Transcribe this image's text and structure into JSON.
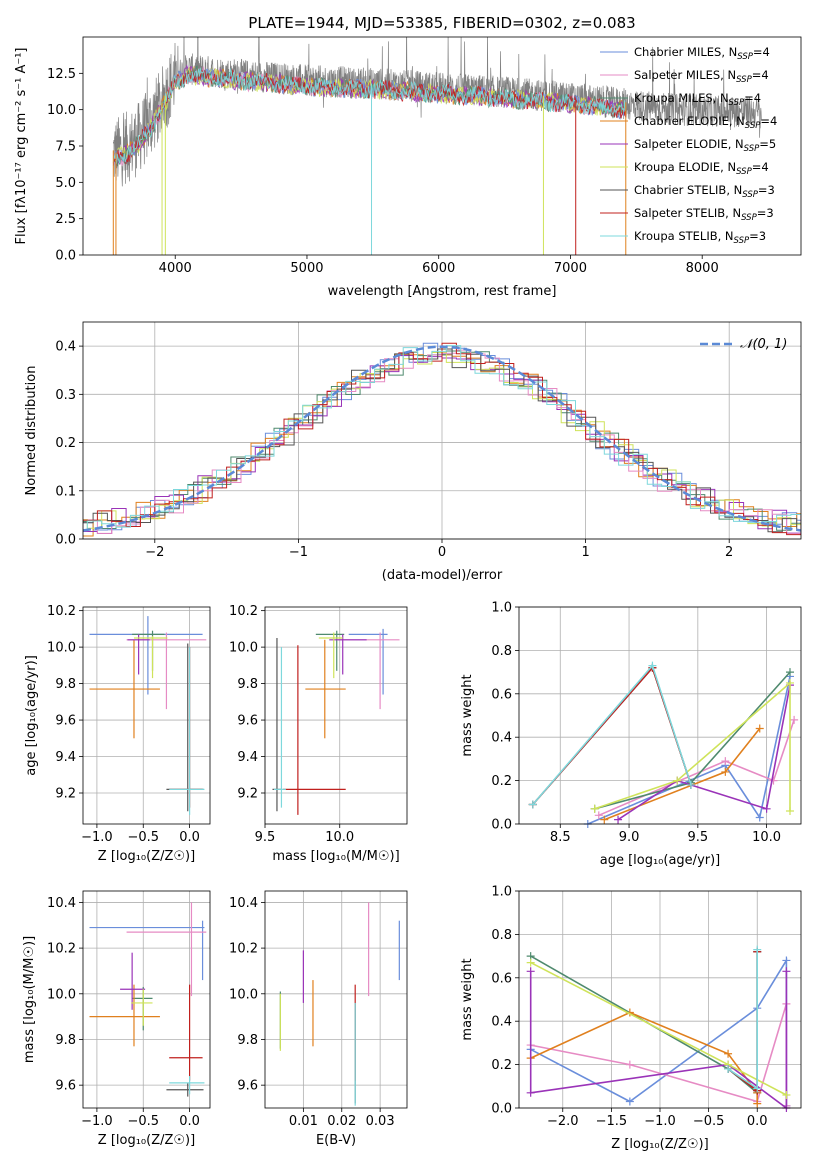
{
  "colors": [
    "#6a8edb",
    "#e68bc4",
    "#4f8a6e",
    "#e0801e",
    "#9a33b8",
    "#cfe35a",
    "#555555",
    "#c0201e",
    "#7ed8dc"
  ],
  "chart_data": [
    {
      "id": "spectrum",
      "type": "line",
      "title": "PLATE=1944, MJD=53385, FIBERID=0302, z=0.083",
      "xlabel": "wavelength [Angstrom, rest frame]",
      "ylabel": "Flux [fλ10⁻¹⁷ erg cm⁻² s⁻¹ A⁻¹]",
      "xlim": [
        3300,
        8750
      ],
      "ylim": [
        0,
        15
      ],
      "xticks": [
        4000,
        5000,
        6000,
        7000,
        8000
      ],
      "yticks": [
        0.0,
        2.5,
        5.0,
        7.5,
        10.0,
        12.5
      ],
      "xticklabels": [
        "4000",
        "5000",
        "6000",
        "7000",
        "8000"
      ],
      "yticklabels": [
        "0.0",
        "2.5",
        "5.0",
        "7.5",
        "10.0",
        "12.5"
      ],
      "grid": false,
      "legend_position": "upper-right",
      "legend": [
        {
          "text": "Chabrier MILES, N",
          "sub": "SSP",
          "val": "=4",
          "color": "#6a8edb"
        },
        {
          "text": "Salpeter MILES, N",
          "sub": "SSP",
          "val": "=4",
          "color": "#e68bc4"
        },
        {
          "text": "Kroupa MILES, N",
          "sub": "SSP",
          "val": "=4",
          "color": "#4f8a6e"
        },
        {
          "text": "Chabrier ELODIE, N",
          "sub": "SSP",
          "val": "=4",
          "color": "#e0801e"
        },
        {
          "text": "Salpeter ELODIE, N",
          "sub": "SSP",
          "val": "=5",
          "color": "#9a33b8"
        },
        {
          "text": "Kroupa ELODIE, N",
          "sub": "SSP",
          "val": "=4",
          "color": "#cfe35a"
        },
        {
          "text": "Chabrier STELIB, N",
          "sub": "SSP",
          "val": "=3",
          "color": "#555555"
        },
        {
          "text": "Salpeter STELIB, N",
          "sub": "SSP",
          "val": "=3",
          "color": "#c0201e"
        },
        {
          "text": "Kroupa STELIB, N",
          "sub": "SSP",
          "val": "=3",
          "color": "#7ed8dc"
        }
      ],
      "data_range": [
        3530,
        8450
      ],
      "data_envelope": {
        "x": [
          3530,
          3600,
          3700,
          3800,
          3900,
          4000,
          4100,
          4300,
          4500,
          5000,
          5500,
          6000,
          6500,
          7000,
          7400,
          7800,
          8200,
          8450
        ],
        "y": [
          7.0,
          7.2,
          7.8,
          9.0,
          10.5,
          12.3,
          12.8,
          12.6,
          12.4,
          12.0,
          11.8,
          11.5,
          11.2,
          10.8,
          10.4,
          10.0,
          9.9,
          9.8
        ]
      },
      "model_range": [
        3530,
        7420
      ]
    },
    {
      "id": "residuals",
      "type": "line",
      "xlabel": "(data-model)/error",
      "ylabel": "Normed distribution",
      "xlim": [
        -2.5,
        2.5
      ],
      "ylim": [
        0,
        0.45
      ],
      "xticks": [
        -2,
        -1,
        0,
        1,
        2
      ],
      "yticks": [
        0.0,
        0.1,
        0.2,
        0.3,
        0.4
      ],
      "xticklabels": [
        "−2",
        "−1",
        "0",
        "1",
        "2"
      ],
      "yticklabels": [
        "0.0",
        "0.1",
        "0.2",
        "0.3",
        "0.4"
      ],
      "grid": true,
      "legend_position": "upper-right",
      "legend_label": "𝒩(0, 1)",
      "gaussian": {
        "mean": 0,
        "sigma": 1,
        "color": "#5b8ad6"
      },
      "bin_width": 0.1
    },
    {
      "id": "age-vs-Z",
      "type": "scatter",
      "xlabel": "Z [log₁₀(Z/Z☉)]",
      "ylabel": "age  [log₁₀(age/yr)]",
      "xlim": [
        -1.15,
        0.22
      ],
      "ylim": [
        9.03,
        10.22
      ],
      "xticks": [
        -1.0,
        -0.5,
        0.0
      ],
      "yticks": [
        9.2,
        9.4,
        9.6,
        9.8,
        10.0,
        10.2
      ],
      "xticklabels": [
        "−1.0",
        "−0.5",
        "0.0"
      ],
      "yticklabels": [
        "9.2",
        "9.4",
        "9.6",
        "9.8",
        "10.0",
        "10.2"
      ],
      "grid": true,
      "points": [
        {
          "x": -0.45,
          "xlo": -1.08,
          "xhi": 0.14,
          "y": 10.07,
          "ylo": 9.74,
          "yhi": 10.17,
          "c": 0
        },
        {
          "x": -0.25,
          "xlo": -0.68,
          "xhi": 0.18,
          "y": 10.04,
          "ylo": 9.66,
          "yhi": 10.08,
          "c": 1
        },
        {
          "x": -0.4,
          "xlo": -0.62,
          "xhi": -0.27,
          "y": 10.07,
          "ylo": 9.87,
          "yhi": 10.09,
          "c": 2
        },
        {
          "x": -0.6,
          "xlo": -1.08,
          "xhi": -0.32,
          "y": 9.77,
          "ylo": 9.5,
          "yhi": 10.04,
          "c": 3
        },
        {
          "x": -0.55,
          "xlo": -0.67,
          "xhi": -0.43,
          "y": 10.04,
          "ylo": 9.85,
          "yhi": 10.07,
          "c": 4
        },
        {
          "x": -0.4,
          "xlo": -0.6,
          "xhi": -0.24,
          "y": 10.05,
          "ylo": 9.83,
          "yhi": 10.06,
          "c": 5
        },
        {
          "x": -0.02,
          "xlo": -0.25,
          "xhi": 0.15,
          "y": 9.22,
          "ylo": 9.1,
          "yhi": 10.02,
          "c": 6
        },
        {
          "x": 0.0,
          "xlo": -0.22,
          "xhi": 0.14,
          "y": 9.22,
          "ylo": 9.12,
          "yhi": 10.0,
          "c": 7
        },
        {
          "x": 0.0,
          "xlo": -0.22,
          "xhi": 0.16,
          "y": 9.22,
          "ylo": 9.08,
          "yhi": 10.0,
          "c": 8
        }
      ]
    },
    {
      "id": "age-vs-mass",
      "type": "scatter",
      "xlabel": "mass [log₁₀(M/M☉)]",
      "ylabel": "",
      "xlim": [
        9.5,
        10.45
      ],
      "ylim": [
        9.03,
        10.22
      ],
      "xticks": [
        9.5,
        10.0
      ],
      "yticks": [
        9.2,
        9.4,
        9.6,
        9.8,
        10.0,
        10.2
      ],
      "xticklabels": [
        "9.5",
        "10.0"
      ],
      "yticklabels": [
        "9.2",
        "9.4",
        "9.6",
        "9.8",
        "10.0",
        "10.2"
      ],
      "grid": true,
      "points": [
        {
          "x": 10.29,
          "xlo": 10.06,
          "xhi": 10.32,
          "y": 10.07,
          "ylo": 9.74,
          "yhi": 10.1,
          "c": 0
        },
        {
          "x": 10.27,
          "xlo": 9.99,
          "xhi": 10.4,
          "y": 10.04,
          "ylo": 9.66,
          "yhi": 10.08,
          "c": 1
        },
        {
          "x": 9.98,
          "xlo": 9.84,
          "xhi": 10.03,
          "y": 10.07,
          "ylo": 9.87,
          "yhi": 10.09,
          "c": 2
        },
        {
          "x": 9.9,
          "xlo": 9.77,
          "xhi": 10.04,
          "y": 9.77,
          "ylo": 9.5,
          "yhi": 10.04,
          "c": 3
        },
        {
          "x": 10.02,
          "xlo": 9.93,
          "xhi": 10.18,
          "y": 10.04,
          "ylo": 9.85,
          "yhi": 10.07,
          "c": 4
        },
        {
          "x": 9.96,
          "xlo": 9.86,
          "xhi": 10.02,
          "y": 10.05,
          "ylo": 9.83,
          "yhi": 10.08,
          "c": 5
        },
        {
          "x": 9.58,
          "xlo": 9.55,
          "xhi": 9.61,
          "y": 9.22,
          "ylo": 9.1,
          "yhi": 10.05,
          "c": 6
        },
        {
          "x": 9.72,
          "xlo": 9.62,
          "xhi": 10.04,
          "y": 9.22,
          "ylo": 9.08,
          "yhi": 10.01,
          "c": 7
        },
        {
          "x": 9.61,
          "xlo": 9.56,
          "xhi": 9.64,
          "y": 9.22,
          "ylo": 9.12,
          "yhi": 10.0,
          "c": 8
        }
      ]
    },
    {
      "id": "mass-weight-vs-age",
      "type": "line",
      "xlabel": "age  [log₁₀(age/yr)]",
      "ylabel": "mass weight",
      "xlim": [
        8.2,
        10.25
      ],
      "ylim": [
        0,
        1
      ],
      "xticks": [
        8.5,
        9.0,
        9.5,
        10.0
      ],
      "yticks": [
        0.0,
        0.2,
        0.4,
        0.6,
        0.8,
        1.0
      ],
      "xticklabels": [
        "8.5",
        "9.0",
        "9.5",
        "10.0"
      ],
      "yticklabels": [
        "0.0",
        "0.2",
        "0.4",
        "0.6",
        "0.8",
        "1.0"
      ],
      "grid": true,
      "series": [
        {
          "c": 0,
          "x": [
            8.7,
            9.7,
            9.95,
            10.17
          ],
          "y": [
            0.0,
            0.27,
            0.03,
            0.68
          ]
        },
        {
          "c": 1,
          "x": [
            8.78,
            9.7,
            10.05,
            10.2
          ],
          "y": [
            0.04,
            0.29,
            0.2,
            0.48
          ]
        },
        {
          "c": 2,
          "x": [
            8.75,
            9.45,
            10.17
          ],
          "y": [
            0.07,
            0.19,
            0.7
          ]
        },
        {
          "c": 3,
          "x": [
            8.82,
            9.7,
            9.95
          ],
          "y": [
            0.02,
            0.24,
            0.44
          ]
        },
        {
          "c": 4,
          "x": [
            8.92,
            9.35,
            10.0,
            10.17
          ],
          "y": [
            0.02,
            0.2,
            0.07,
            0.64
          ]
        },
        {
          "c": 5,
          "x": [
            8.75,
            9.35,
            10.17,
            10.17
          ],
          "y": [
            0.07,
            0.2,
            0.65,
            0.06
          ]
        },
        {
          "c": 6,
          "x": [
            8.3,
            9.17,
            9.45
          ],
          "y": [
            0.09,
            0.72,
            0.18
          ]
        },
        {
          "c": 7,
          "x": [
            8.3,
            9.17,
            9.45
          ],
          "y": [
            0.09,
            0.72,
            0.18
          ]
        },
        {
          "c": 8,
          "x": [
            8.3,
            9.17,
            9.45
          ],
          "y": [
            0.09,
            0.73,
            0.18
          ]
        }
      ]
    },
    {
      "id": "mass-vs-Z",
      "type": "scatter",
      "xlabel": "Z [log₁₀(Z/Z☉)]",
      "ylabel": "mass [log₁₀(M/M☉)]",
      "xlim": [
        -1.15,
        0.22
      ],
      "ylim": [
        9.5,
        10.45
      ],
      "xticks": [
        -1.0,
        -0.5,
        0.0
      ],
      "yticks": [
        9.6,
        9.8,
        10.0,
        10.2,
        10.4
      ],
      "xticklabels": [
        "−1.0",
        "−0.5",
        "0.0"
      ],
      "yticklabels": [
        "9.6",
        "9.8",
        "10.0",
        "10.2",
        "10.4"
      ],
      "grid": true,
      "points": [
        {
          "x": 0.14,
          "xlo": -1.08,
          "xhi": 0.16,
          "y": 10.29,
          "ylo": 10.06,
          "yhi": 10.32,
          "c": 0
        },
        {
          "x": 0.02,
          "xlo": -0.68,
          "xhi": 0.18,
          "y": 10.27,
          "ylo": 9.99,
          "yhi": 10.4,
          "c": 1
        },
        {
          "x": -0.5,
          "xlo": -0.62,
          "xhi": -0.4,
          "y": 9.98,
          "ylo": 9.84,
          "yhi": 10.03,
          "c": 2
        },
        {
          "x": -0.6,
          "xlo": -1.08,
          "xhi": -0.32,
          "y": 9.9,
          "ylo": 9.77,
          "yhi": 10.04,
          "c": 3
        },
        {
          "x": -0.62,
          "xlo": -0.75,
          "xhi": -0.48,
          "y": 10.02,
          "ylo": 9.93,
          "yhi": 10.18,
          "c": 4
        },
        {
          "x": -0.5,
          "xlo": -0.63,
          "xhi": -0.4,
          "y": 9.96,
          "ylo": 9.86,
          "yhi": 10.02,
          "c": 5
        },
        {
          "x": -0.02,
          "xlo": -0.25,
          "xhi": 0.15,
          "y": 9.58,
          "ylo": 9.55,
          "yhi": 9.61,
          "c": 6
        },
        {
          "x": 0.0,
          "xlo": -0.22,
          "xhi": 0.14,
          "y": 9.72,
          "ylo": 9.62,
          "yhi": 10.04,
          "c": 7
        },
        {
          "x": 0.0,
          "xlo": -0.22,
          "xhi": 0.16,
          "y": 9.61,
          "ylo": 9.56,
          "yhi": 9.64,
          "c": 8
        }
      ]
    },
    {
      "id": "mass-vs-ebv",
      "type": "scatter",
      "xlabel": "E(B-V)",
      "ylabel": "",
      "xlim": [
        0.0,
        0.037
      ],
      "ylim": [
        9.5,
        10.45
      ],
      "xticks": [
        0.01,
        0.02,
        0.03
      ],
      "yticks": [
        9.6,
        9.8,
        10.0,
        10.2,
        10.4
      ],
      "xticklabels": [
        "0.01",
        "0.02",
        "0.03"
      ],
      "yticklabels": [
        "9.6",
        "9.8",
        "10.0",
        "10.2",
        "10.4"
      ],
      "grid": true,
      "points": [
        {
          "x": 0.035,
          "y": 10.29,
          "ylo": 10.06,
          "yhi": 10.32,
          "c": 0
        },
        {
          "x": 0.027,
          "y": 10.27,
          "ylo": 9.99,
          "yhi": 10.4,
          "c": 1
        },
        {
          "x": 0.004,
          "y": 9.98,
          "ylo": 9.76,
          "yhi": 10.01,
          "c": 2
        },
        {
          "x": 0.0125,
          "y": 9.9,
          "ylo": 9.77,
          "yhi": 10.06,
          "c": 3
        },
        {
          "x": 0.01,
          "y": 10.02,
          "ylo": 9.96,
          "yhi": 10.19,
          "c": 4
        },
        {
          "x": 0.004,
          "y": 9.96,
          "ylo": 9.75,
          "yhi": 10.0,
          "c": 5
        },
        {
          "x": 0.0235,
          "y": 9.58,
          "ylo": 9.52,
          "yhi": 9.96,
          "c": 6
        },
        {
          "x": 0.0235,
          "y": 9.72,
          "ylo": 9.62,
          "yhi": 10.04,
          "c": 7
        },
        {
          "x": 0.0235,
          "y": 9.61,
          "ylo": 9.51,
          "yhi": 9.96,
          "c": 8
        }
      ]
    },
    {
      "id": "mass-weight-vs-Z",
      "type": "line",
      "xlabel": "Z [log₁₀(Z/Z☉)]",
      "ylabel": "mass weight",
      "xlim": [
        -2.45,
        0.45
      ],
      "ylim": [
        0,
        1
      ],
      "xticks": [
        -2.0,
        -1.5,
        -1.0,
        -0.5,
        0.0
      ],
      "yticks": [
        0.0,
        0.2,
        0.4,
        0.6,
        0.8,
        1.0
      ],
      "xticklabels": [
        "−2.0",
        "−1.5",
        "−1.0",
        "−0.5",
        "0.0"
      ],
      "yticklabels": [
        "0.0",
        "0.2",
        "0.4",
        "0.6",
        "0.8",
        "1.0"
      ],
      "grid": true,
      "series": [
        {
          "c": 0,
          "x": [
            -2.33,
            -1.31,
            0.0,
            0.3,
            0.3
          ],
          "y": [
            0.27,
            0.03,
            0.46,
            0.68,
            0.01
          ]
        },
        {
          "c": 1,
          "x": [
            -2.33,
            -1.31,
            0.0,
            0.3,
            0.3
          ],
          "y": [
            0.29,
            0.2,
            0.03,
            0.48,
            0.01
          ]
        },
        {
          "c": 2,
          "x": [
            -2.33,
            -0.3,
            0.0
          ],
          "y": [
            0.7,
            0.18,
            0.07
          ]
        },
        {
          "c": 3,
          "x": [
            -2.33,
            -1.31,
            -0.3,
            0.0,
            0.0
          ],
          "y": [
            0.23,
            0.44,
            0.25,
            0.07,
            0.02
          ]
        },
        {
          "c": 4,
          "x": [
            -2.33,
            -2.33,
            -0.3,
            0.3,
            0.3
          ],
          "y": [
            0.63,
            0.07,
            0.2,
            0.0,
            0.63
          ]
        },
        {
          "c": 5,
          "x": [
            -2.33,
            -0.3,
            0.3
          ],
          "y": [
            0.67,
            0.2,
            0.06
          ]
        },
        {
          "c": 6,
          "x": [
            -0.3,
            0.0,
            0.0
          ],
          "y": [
            0.18,
            0.08,
            0.72
          ]
        },
        {
          "c": 7,
          "x": [
            -0.3,
            0.0,
            0.0
          ],
          "y": [
            0.18,
            0.08,
            0.72
          ]
        },
        {
          "c": 8,
          "x": [
            -0.3,
            0.0,
            0.0
          ],
          "y": [
            0.18,
            0.09,
            0.73
          ]
        }
      ]
    }
  ]
}
